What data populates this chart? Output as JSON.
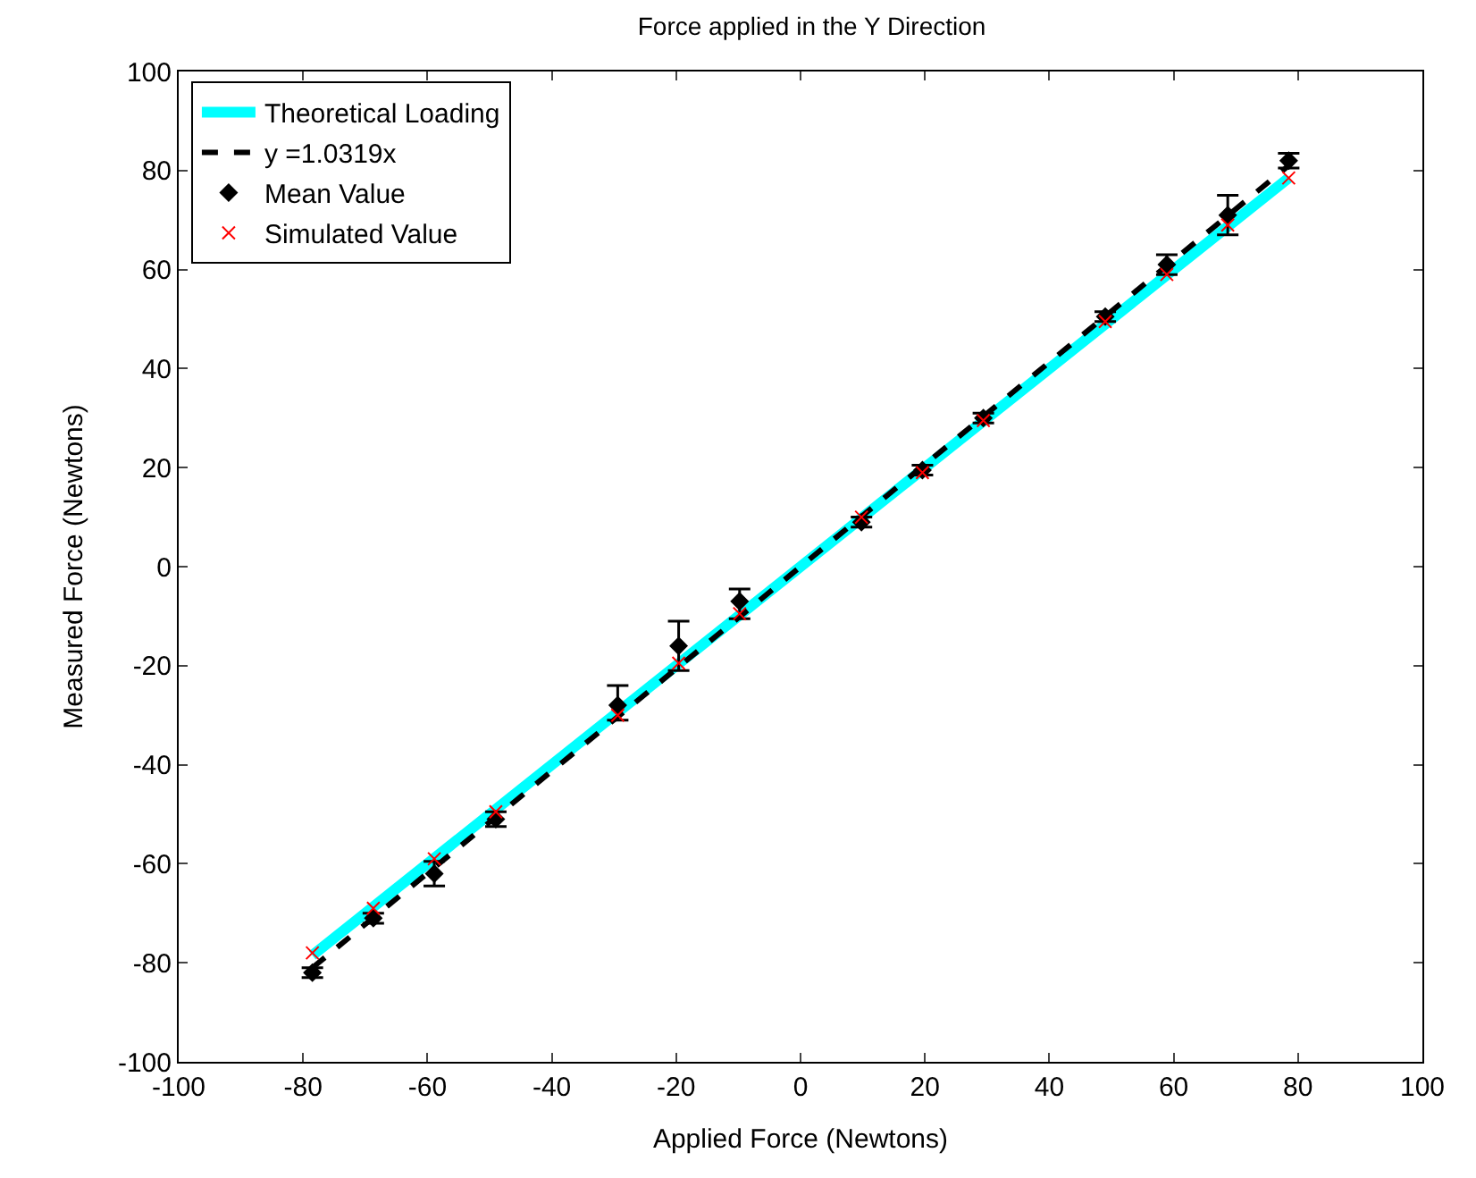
{
  "chart_data": {
    "type": "scatter",
    "title": "Force applied in the Y Direction",
    "xlabel": "Applied Force (Newtons)",
    "ylabel": "Measured Force (Newtons)",
    "xlim": [
      -100,
      100
    ],
    "ylim": [
      -100,
      100
    ],
    "xticks": [
      -100,
      -80,
      -60,
      -40,
      -20,
      0,
      20,
      40,
      60,
      80,
      100
    ],
    "yticks": [
      -100,
      -80,
      -60,
      -40,
      -20,
      0,
      20,
      40,
      60,
      80,
      100
    ],
    "legend": "top left",
    "series": [
      {
        "name": "Theoretical Loading",
        "type": "line",
        "color": "#00ffff",
        "line_style": "solid",
        "marker": "none",
        "x": [
          -78.5,
          78.5
        ],
        "values": [
          -78.5,
          78.5
        ]
      },
      {
        "name": "y =1.0319x",
        "type": "line",
        "color": "#000000",
        "line_style": "dashed",
        "marker": "none",
        "x": [
          -78.5,
          78.5
        ],
        "values": [
          -81,
          81
        ]
      },
      {
        "name": "Mean Value",
        "color": "#000000",
        "marker": "diamond",
        "x": [
          -78.5,
          -68.7,
          -58.9,
          -49,
          -29.4,
          -19.6,
          -9.8,
          9.8,
          19.6,
          29.4,
          49,
          58.9,
          68.7,
          78.5
        ],
        "values": [
          -82,
          -71,
          -62,
          -51,
          -28,
          -16,
          -7,
          9,
          19.5,
          30,
          50.5,
          61,
          71,
          82
        ],
        "errors": [
          1,
          1,
          2.5,
          1.5,
          [
            -31,
            -24
          ],
          [
            -21,
            -11
          ],
          [
            -10.5,
            -4.5
          ],
          1,
          1,
          1,
          1,
          2,
          4,
          1.5
        ]
      },
      {
        "name": "Simulated Value",
        "color": "#ff0000",
        "marker": "cross",
        "x": [
          -78.5,
          -68.7,
          -58.9,
          -49,
          -29.4,
          -19.6,
          -9.8,
          9.8,
          19.6,
          29.4,
          49,
          58.9,
          68.7,
          78.5
        ],
        "values": [
          -78,
          -69,
          -59,
          -49.5,
          -30,
          -19.5,
          -9.5,
          10,
          19,
          29.5,
          49.5,
          59,
          69,
          78.5
        ]
      }
    ]
  }
}
